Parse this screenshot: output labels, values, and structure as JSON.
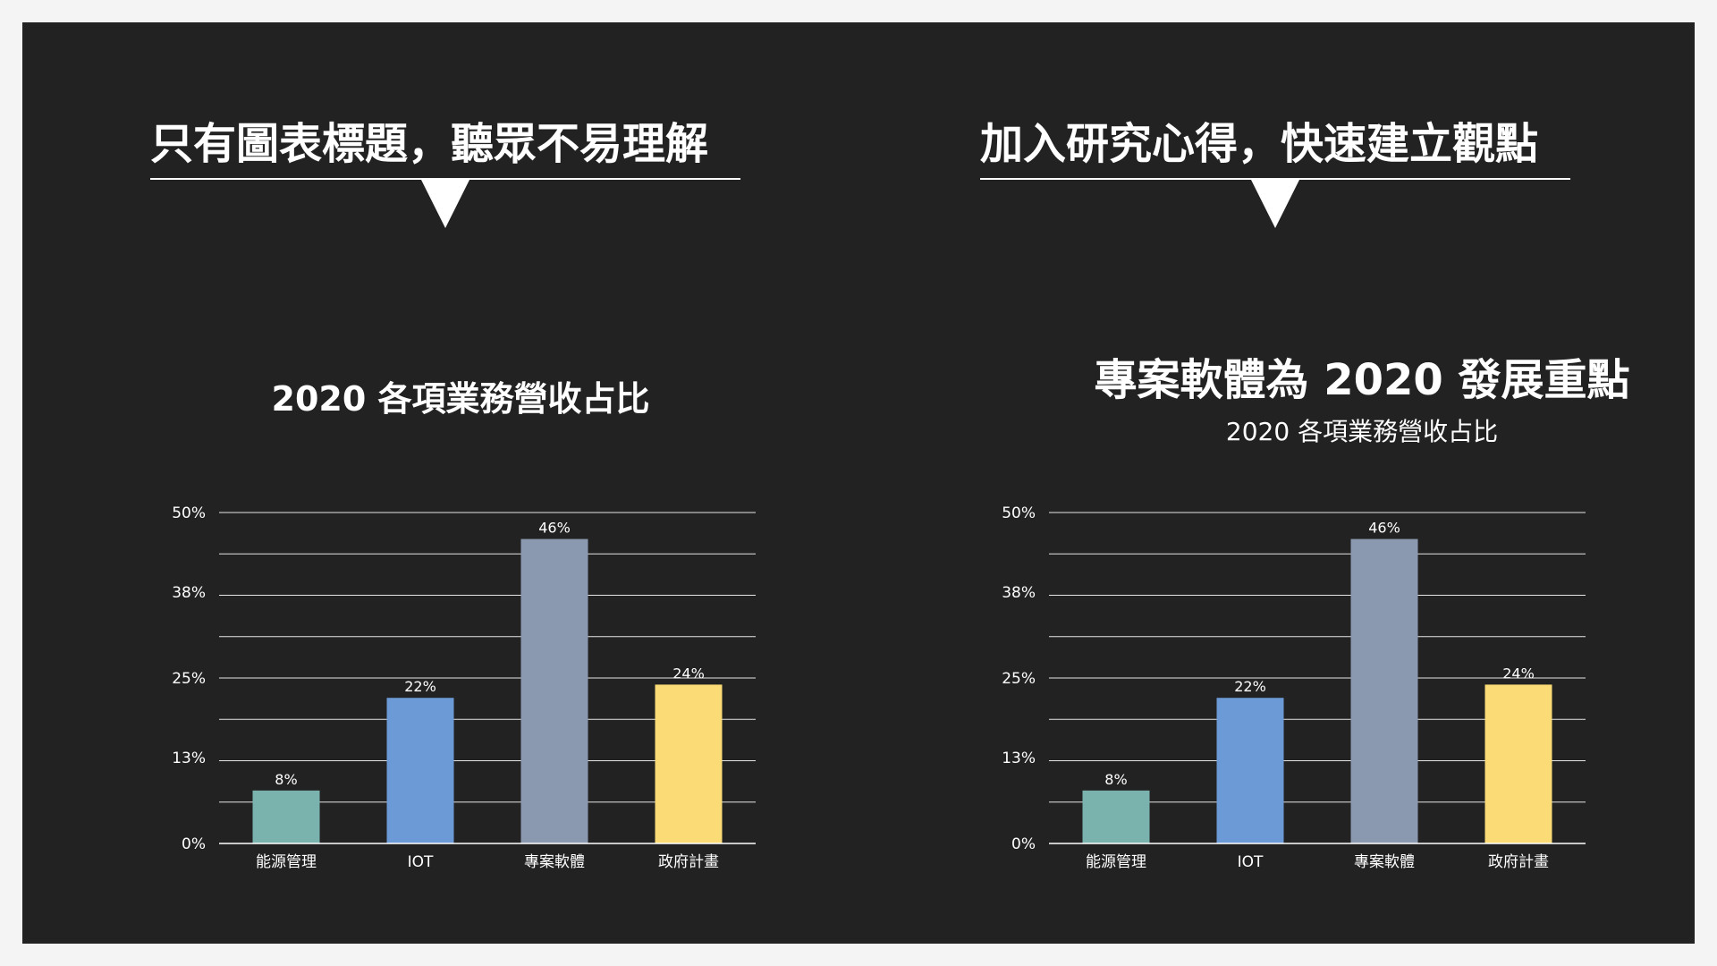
{
  "left_panel": {
    "heading": "只有圖表標題，聽眾不易理解",
    "chart_title": "2020 各項業務營收占比"
  },
  "right_panel": {
    "heading": "加入研究心得，快速建立觀點",
    "insight_title": "專案軟體為 2020 發展重點",
    "chart_subtitle": "2020 各項業務營收占比"
  },
  "colors": {
    "background": "#222222",
    "page": "#f4f4f4",
    "text": "#ffffff",
    "bar_energy": "#7ab3ad",
    "bar_iot": "#6b9ad6",
    "bar_project": "#8a98b0",
    "bar_gov": "#fadb75"
  },
  "chart_data": [
    {
      "type": "bar",
      "title": "2020 各項業務營收占比",
      "categories": [
        "能源管理",
        "IOT",
        "專案軟體",
        "政府計畫"
      ],
      "values": [
        8,
        22,
        46,
        24
      ],
      "data_labels": [
        "8%",
        "22%",
        "46%",
        "24%"
      ],
      "y_ticks": [
        0,
        13,
        25,
        38,
        50
      ],
      "y_tick_labels": [
        "0%",
        "13%",
        "25%",
        "38%",
        "50%"
      ],
      "ylim": [
        0,
        50
      ],
      "grid": true,
      "xlabel": "",
      "ylabel": ""
    },
    {
      "type": "bar",
      "title": "專案軟體為 2020 發展重點",
      "subtitle": "2020 各項業務營收占比",
      "categories": [
        "能源管理",
        "IOT",
        "專案軟體",
        "政府計畫"
      ],
      "values": [
        8,
        22,
        46,
        24
      ],
      "data_labels": [
        "8%",
        "22%",
        "46%",
        "24%"
      ],
      "y_ticks": [
        0,
        13,
        25,
        38,
        50
      ],
      "y_tick_labels": [
        "0%",
        "13%",
        "25%",
        "38%",
        "50%"
      ],
      "ylim": [
        0,
        50
      ],
      "grid": true,
      "xlabel": "",
      "ylabel": ""
    }
  ]
}
